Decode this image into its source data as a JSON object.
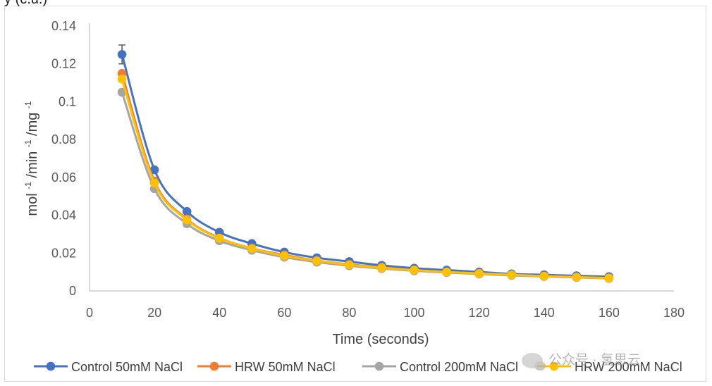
{
  "header": {
    "partial_label": "y (c.u.)"
  },
  "watermark": {
    "text": "公众号 · 氢思云"
  },
  "chart_data": {
    "type": "line",
    "title": "",
    "xlabel": "Time (seconds)",
    "ylabel_parts": [
      "mol",
      "-1",
      "/min",
      "-1",
      "/mg",
      "-1"
    ],
    "xlim": [
      0,
      180
    ],
    "ylim": [
      0,
      0.14
    ],
    "x_ticks": [
      0,
      20,
      40,
      60,
      80,
      100,
      120,
      140,
      160,
      180
    ],
    "y_ticks": [
      0,
      0.02,
      0.04,
      0.06,
      0.08,
      0.1,
      0.12,
      0.14
    ],
    "y_tick_labels": [
      "0",
      "0.02",
      "0.04",
      "0.06",
      "0.08",
      "0.1",
      "0.12",
      "0.14"
    ],
    "x_tick_labels": [
      "0",
      "20",
      "40",
      "60",
      "80",
      "100",
      "120",
      "140",
      "160",
      "180"
    ],
    "grid": false,
    "legend_position": "bottom",
    "x": [
      10,
      20,
      30,
      40,
      50,
      60,
      70,
      80,
      90,
      100,
      110,
      120,
      130,
      140,
      150,
      160
    ],
    "series": [
      {
        "name": "Control 50mM NaCl",
        "color": "#4472C4",
        "values": [
          0.125,
          0.064,
          0.042,
          0.031,
          0.025,
          0.0205,
          0.0175,
          0.0155,
          0.0135,
          0.012,
          0.011,
          0.01,
          0.009,
          0.0085,
          0.008,
          0.0075
        ],
        "error_bar": {
          "x": 10,
          "plus": 0.005,
          "minus": 0.005
        }
      },
      {
        "name": "HRW 50mM NaCl",
        "color": "#ED7D31",
        "values": [
          0.115,
          0.058,
          0.038,
          0.028,
          0.0225,
          0.019,
          0.016,
          0.014,
          0.0125,
          0.011,
          0.01,
          0.0093,
          0.0085,
          0.0078,
          0.0072,
          0.0067
        ],
        "error_bar": null
      },
      {
        "name": "Control 200mM NaCl",
        "color": "#A5A5A5",
        "values": [
          0.105,
          0.054,
          0.0355,
          0.0265,
          0.0215,
          0.0178,
          0.0152,
          0.0133,
          0.0118,
          0.0106,
          0.0097,
          0.0089,
          0.0082,
          0.0076,
          0.0071,
          0.0066
        ],
        "error_bar": null
      },
      {
        "name": "HRW 200mM NaCl",
        "color": "#FFC000",
        "values": [
          0.112,
          0.057,
          0.0375,
          0.0278,
          0.0224,
          0.0186,
          0.0159,
          0.0138,
          0.0122,
          0.011,
          0.01,
          0.0092,
          0.0085,
          0.0078,
          0.0073,
          0.0068
        ],
        "error_bar": null
      }
    ]
  }
}
